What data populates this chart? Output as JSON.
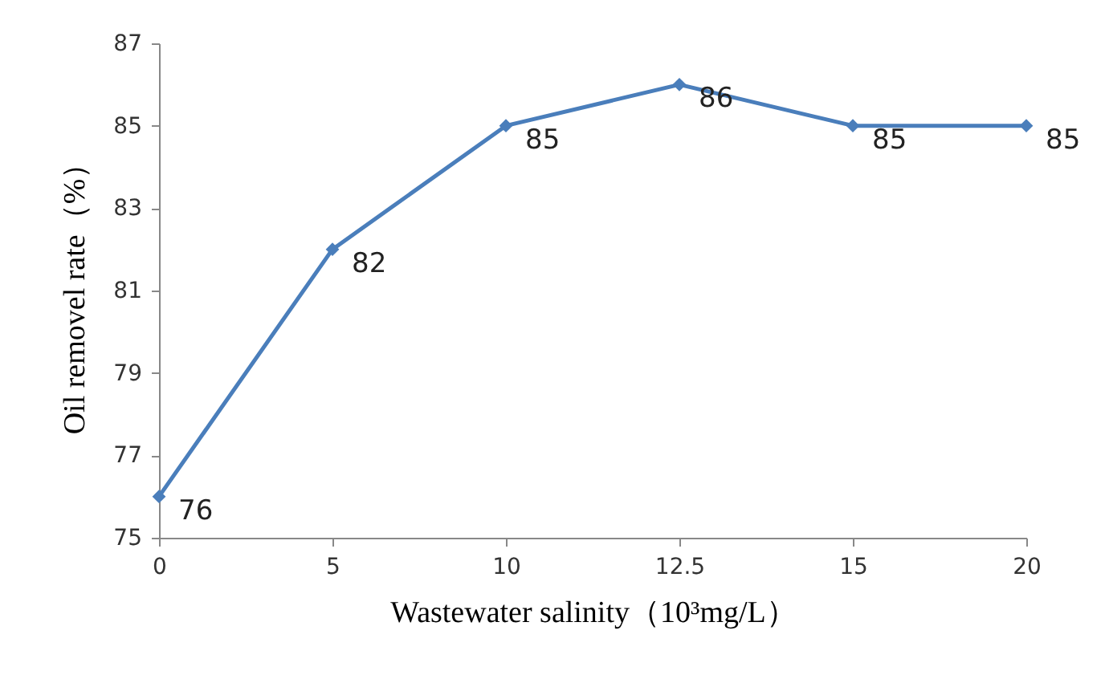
{
  "chart_data": {
    "type": "line",
    "xlabel": "Wastewater salinity（10³mg/L）",
    "ylabel": "Oil removel rate（%）",
    "categories": [
      "0",
      "5",
      "10",
      "12.5",
      "15",
      "20"
    ],
    "series": [
      {
        "color": "#4a7ebb",
        "values": [
          76,
          82,
          85,
          86,
          85,
          85
        ]
      }
    ],
    "ylim": [
      75,
      87
    ],
    "yticks": [
      75,
      77,
      79,
      81,
      83,
      85,
      87
    ],
    "grid": false,
    "marker": "diamond",
    "line_style": "solid",
    "data_labels": true
  }
}
